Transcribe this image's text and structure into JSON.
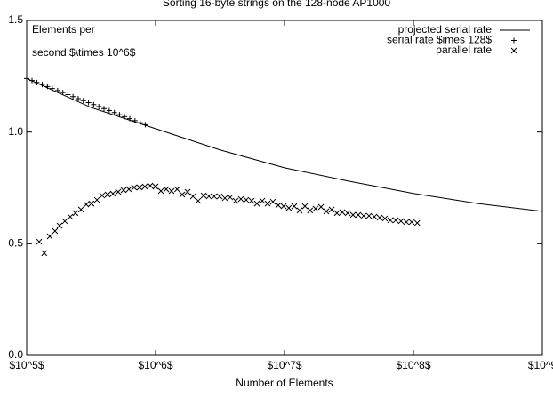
{
  "chart_data": {
    "type": "line",
    "title": "Sorting 16-byte strings on the 128-node AP1000",
    "x_label": "Number of Elements",
    "y_label_lines": [
      "Elements per",
      "second $\\times 10^6$"
    ],
    "xscale": "log",
    "xlim": [
      100000,
      1000000000
    ],
    "xticks": [
      {
        "value": 100000,
        "label": "$10^5$"
      },
      {
        "value": 1000000,
        "label": "$10^6$"
      },
      {
        "value": 10000000,
        "label": "$10^7$"
      },
      {
        "value": 100000000,
        "label": "$10^8$"
      },
      {
        "value": 1000000000,
        "label": "$10^9"
      }
    ],
    "ylim": [
      0,
      1.5
    ],
    "yticks": [
      {
        "value": 0,
        "label": "0.0"
      },
      0.5,
      {
        "value": 1,
        "label": "1.0"
      },
      1.5
    ],
    "grid": false,
    "legend": "top-right",
    "series": [
      {
        "name": "projected serial rate",
        "color": "#000000",
        "style": "line",
        "x": [
          100000,
          316228,
          1000000,
          3162278,
          10000000,
          31622777,
          100000000,
          316227766,
          1000000000
        ],
        "values": [
          1.24,
          1.11,
          1.015,
          0.92,
          0.84,
          0.78,
          0.725,
          0.68,
          0.645
        ]
      },
      {
        "name": "serial rate $imes 128$",
        "color": "#000000",
        "style": "points",
        "marker": "plus",
        "x": [
          100000,
          110000,
          120000,
          132000,
          145000,
          158000,
          174000,
          191000,
          209000,
          229000,
          251000,
          275000,
          302000,
          331000,
          363000,
          398000,
          437000,
          479000,
          525000,
          575000,
          631000,
          692000,
          759000,
          832000
        ],
        "values": [
          1.24,
          1.231,
          1.222,
          1.213,
          1.204,
          1.195,
          1.186,
          1.177,
          1.168,
          1.159,
          1.15,
          1.141,
          1.132,
          1.123,
          1.114,
          1.105,
          1.096,
          1.087,
          1.078,
          1.069,
          1.06,
          1.051,
          1.042,
          1.033
        ]
      },
      {
        "name": "parallel rate",
        "color": "#000000",
        "style": "points",
        "marker": "cross",
        "x": [
          125000,
          137000,
          151000,
          166000,
          180000,
          198000,
          218000,
          239000,
          264000,
          290000,
          318000,
          351000,
          385000,
          425000,
          467000,
          513000,
          565000,
          621000,
          682000,
          752000,
          826000,
          910000,
          1000000,
          1100000,
          1210000,
          1330000,
          1470000,
          1610000,
          1770000,
          1950000,
          2140000,
          2360000,
          2590000,
          2850000,
          3140000,
          3450000,
          3790000,
          4180000,
          4590000,
          5050000,
          5560000,
          6110000,
          6730000,
          7400000,
          8130000,
          8950000,
          9840000,
          10800000,
          11900000,
          13100000,
          14400000,
          15800000,
          17400000,
          19200000,
          21100000,
          23200000,
          25500000,
          28100000,
          30900000,
          34000000,
          37300000,
          41100000,
          45200000,
          49800000,
          54700000,
          60100000,
          66200000,
          72800000,
          80000000,
          88100000,
          96800000,
          107000000
        ],
        "values": [
          0.509,
          0.458,
          0.533,
          0.557,
          0.581,
          0.601,
          0.621,
          0.637,
          0.653,
          0.676,
          0.68,
          0.696,
          0.716,
          0.72,
          0.724,
          0.732,
          0.74,
          0.744,
          0.752,
          0.752,
          0.756,
          0.76,
          0.756,
          0.736,
          0.744,
          0.736,
          0.744,
          0.72,
          0.732,
          0.712,
          0.692,
          0.716,
          0.712,
          0.712,
          0.712,
          0.704,
          0.708,
          0.692,
          0.7,
          0.696,
          0.692,
          0.68,
          0.692,
          0.68,
          0.688,
          0.672,
          0.668,
          0.66,
          0.668,
          0.649,
          0.668,
          0.649,
          0.657,
          0.665,
          0.645,
          0.653,
          0.637,
          0.641,
          0.637,
          0.629,
          0.629,
          0.625,
          0.625,
          0.621,
          0.617,
          0.613,
          0.605,
          0.605,
          0.601,
          0.597,
          0.597,
          0.593
        ]
      }
    ]
  }
}
